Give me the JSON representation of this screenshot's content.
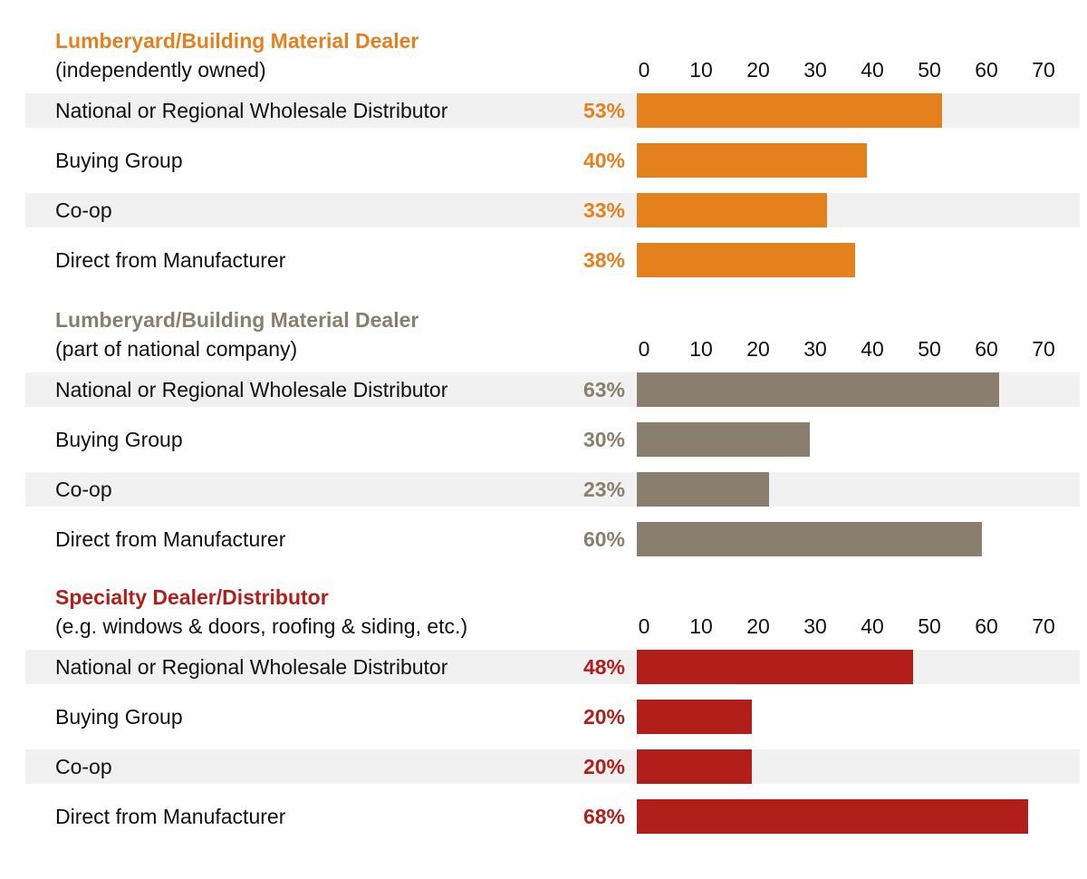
{
  "chart_data": [
    {
      "type": "bar",
      "orientation": "horizontal",
      "title": "Lumberyard/Building Material Dealer",
      "subtitle": "(independently owned)",
      "color": "#E5801E",
      "categories": [
        "National or Regional Wholesale Distributor",
        "Buying Group",
        "Co-op",
        "Direct from Manufacturer"
      ],
      "values": [
        53,
        40,
        33,
        38
      ],
      "data_labels": [
        "53%",
        "40%",
        "33%",
        "38%"
      ],
      "xlim": [
        0,
        70
      ],
      "ticks": [
        "0",
        "10",
        "20",
        "30",
        "40",
        "50",
        "60",
        "70"
      ]
    },
    {
      "type": "bar",
      "orientation": "horizontal",
      "title": "Lumberyard/Building Material Dealer",
      "subtitle": "(part of national company)",
      "color": "#8A7F6E",
      "categories": [
        "National or Regional Wholesale Distributor",
        "Buying Group",
        "Co-op",
        "Direct from Manufacturer"
      ],
      "values": [
        63,
        30,
        23,
        60
      ],
      "data_labels": [
        "63%",
        "30%",
        "23%",
        "60%"
      ],
      "xlim": [
        0,
        70
      ],
      "ticks": [
        "0",
        "10",
        "20",
        "30",
        "40",
        "50",
        "60",
        "70"
      ]
    },
    {
      "type": "bar",
      "orientation": "horizontal",
      "title": "Specialty Dealer/Distributor",
      "subtitle": "(e.g. windows & doors, roofing & siding, etc.)",
      "color": "#B21F1A",
      "categories": [
        "National or Regional Wholesale Distributor",
        "Buying Group",
        "Co-op",
        "Direct from Manufacturer"
      ],
      "values": [
        48,
        20,
        20,
        68
      ],
      "data_labels": [
        "48%",
        "20%",
        "20%",
        "68%"
      ],
      "xlim": [
        0,
        70
      ],
      "ticks": [
        "0",
        "10",
        "20",
        "30",
        "40",
        "50",
        "60",
        "70"
      ]
    }
  ]
}
